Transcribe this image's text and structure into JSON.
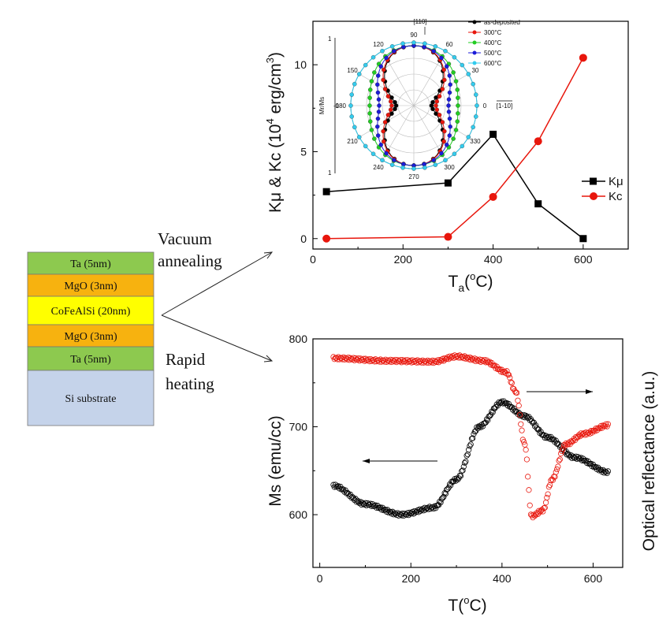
{
  "stack": {
    "layers": [
      {
        "label": "Ta (5nm)",
        "color": "#8dc94f"
      },
      {
        "label": "MgO (3nm)",
        "color": "#f7b20f"
      },
      {
        "label": "CoFeAlSi (20nm)",
        "color": "#ffff00"
      },
      {
        "label": "MgO (3nm)",
        "color": "#f7b20f"
      },
      {
        "label": "Ta (5nm)",
        "color": "#8dc94f"
      },
      {
        "label": "Si substrate",
        "color": "#c5d3ea"
      }
    ]
  },
  "annotations": {
    "vacuum": [
      "Vacuum",
      "annealing"
    ],
    "rapid": [
      "Rapid",
      "heating"
    ]
  },
  "chart_data": [
    {
      "type": "line",
      "x": [
        30,
        300,
        400,
        500,
        600
      ],
      "series": [
        {
          "name": "Kμ",
          "values": [
            2.7,
            3.2,
            6.0,
            2.0,
            0.0
          ],
          "color": "#000000",
          "marker": "square"
        },
        {
          "name": "Kc",
          "values": [
            0.0,
            0.1,
            2.4,
            5.6,
            10.4
          ],
          "color": "#e8160c",
          "marker": "circle"
        }
      ],
      "xlabel": {
        "main": "T",
        "sub": "a",
        "paren": "(",
        "sup": "o",
        "unit": "C)"
      },
      "ylabel": {
        "main": "Kμ & Kc (10",
        "sup": "4",
        "unit": " erg/cm",
        "sup2": "3",
        "end": ")"
      },
      "xlim": [
        0,
        700
      ],
      "ylim": [
        -0.6,
        12.5
      ],
      "xticks": [
        0,
        200,
        400,
        600
      ],
      "yticks": [
        0,
        5,
        10
      ],
      "legend": "center-right",
      "inset": {
        "type": "polar",
        "ylabel": "Mr/Ms",
        "angle_ticks": [
          "0",
          "30",
          "60",
          "90",
          "120",
          "150",
          "180",
          "210",
          "240",
          "270",
          "300",
          "330"
        ],
        "radial_ticks": [
          "0",
          "1",
          "1",
          "1"
        ],
        "dir_labels": [
          "[110]",
          "[1-10]"
        ],
        "series": [
          {
            "name": "as-deposited",
            "color": "#000000",
            "r_easy": 0.28,
            "r_hard": 0.95
          },
          {
            "name": "300°C",
            "color": "#e8160c",
            "r_easy": 0.35,
            "r_hard": 0.95
          },
          {
            "name": "400°C",
            "color": "#22cc22",
            "r_easy": 0.7,
            "r_hard": 0.95
          },
          {
            "name": "500°C",
            "color": "#1c1cd8",
            "r_easy": 0.55,
            "r_hard": 0.95
          },
          {
            "name": "600°C",
            "color": "#33ccee",
            "r_easy": 1.0,
            "r_hard": 1.0
          }
        ]
      }
    },
    {
      "type": "scatter",
      "xlabel": {
        "main": "T(",
        "sup": "o",
        "unit": "C)"
      },
      "ylabel_left": "Ms (emu/cc)",
      "ylabel_right": "Optical reflectance (a.u.)",
      "xlim": [
        -15,
        665
      ],
      "ylim": [
        540,
        800
      ],
      "xticks": [
        0,
        200,
        400,
        600
      ],
      "yticks": [
        600,
        700,
        800
      ],
      "series": [
        {
          "name": "Ms",
          "color": "#000000",
          "axis": "left",
          "keypoints": [
            [
              30,
              633
            ],
            [
              100,
              612
            ],
            [
              180,
              600
            ],
            [
              250,
              608
            ],
            [
              300,
              640
            ],
            [
              350,
              700
            ],
            [
              400,
              728
            ],
            [
              450,
              712
            ],
            [
              500,
              688
            ],
            [
              560,
              665
            ],
            [
              635,
              648
            ]
          ]
        },
        {
          "name": "Optical reflectance",
          "color": "#e8160c",
          "axis": "right",
          "keypoints": [
            [
              30,
              778
            ],
            [
              150,
              775
            ],
            [
              250,
              774
            ],
            [
              300,
              780
            ],
            [
              360,
              775
            ],
            [
              410,
              762
            ],
            [
              430,
              740
            ],
            [
              450,
              680
            ],
            [
              465,
              598
            ],
            [
              490,
              605
            ],
            [
              510,
              640
            ],
            [
              540,
              680
            ],
            [
              580,
              692
            ],
            [
              635,
              702
            ]
          ]
        }
      ],
      "arrows": [
        "left",
        "right"
      ]
    }
  ]
}
